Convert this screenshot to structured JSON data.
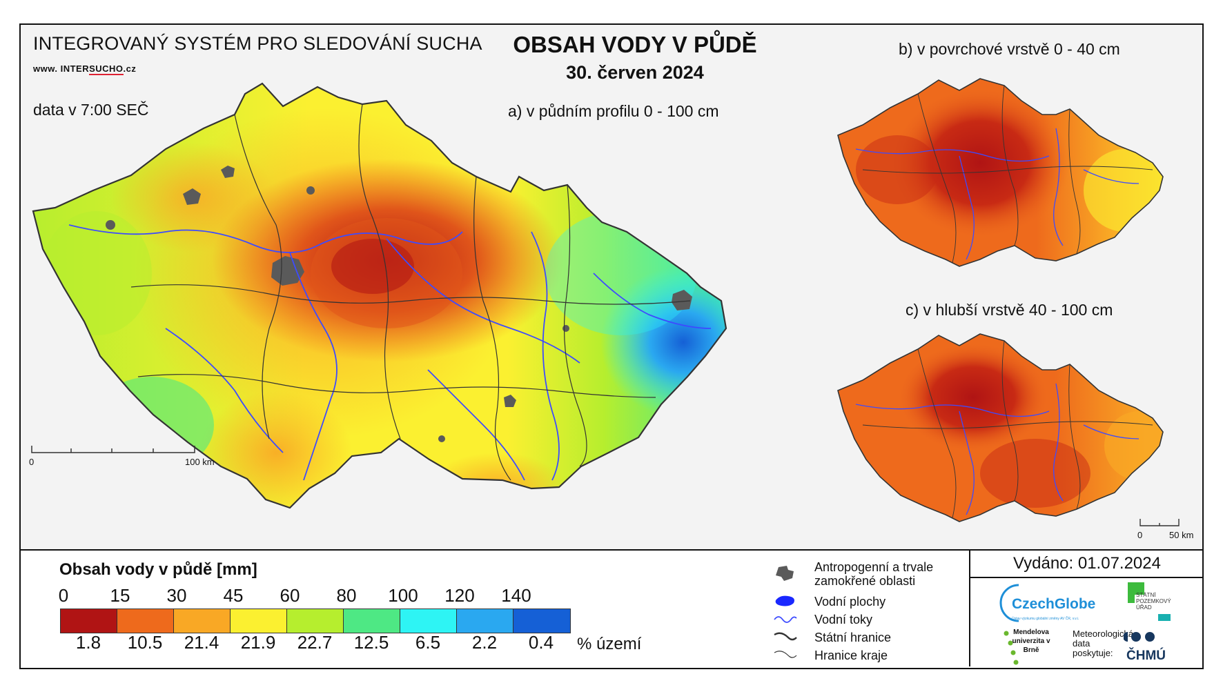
{
  "header": {
    "system_title": "INTEGROVANÝ SYSTÉM PRO SLEDOVÁNÍ SUCHA",
    "web_prefix": "www. INTER",
    "web_highlight": "SUCHO",
    "web_suffix": ".cz",
    "data_time": "data v 7:00 SEČ",
    "main_title": "OBSAH VODY V PŮDĚ",
    "date": "30. červen 2024"
  },
  "maps": {
    "a_label": "a) v půdním profilu 0 - 100 cm",
    "b_label": "b) v povrchové vrstvě 0 - 40 cm",
    "c_label": "c) v hlubší vrstvě 40 - 100 cm"
  },
  "scale_bars": {
    "main_start": "0",
    "main_end": "100 km",
    "small_start": "0",
    "small_end": "50 km"
  },
  "legend": {
    "title": "Obsah vody v půdě  [mm]",
    "ticks": [
      "0",
      "15",
      "30",
      "45",
      "60",
      "80",
      "100",
      "120",
      "140"
    ],
    "colors": [
      "#b01414",
      "#ee6a1c",
      "#f9a825",
      "#fbf030",
      "#b6ee2e",
      "#4ee884",
      "#2ef4f4",
      "#2aa8f0",
      "#1560d6"
    ],
    "percent": [
      "1.8",
      "10.5",
      "21.4",
      "21.9",
      "22.7",
      "12.5",
      "6.5",
      "2.2",
      "0.4"
    ],
    "percent_label": "% území"
  },
  "symbols": {
    "anthropogenic": "Antropogenní a trvale zamokřené oblasti",
    "water_bodies": "Vodní plochy",
    "water_courses": "Vodní toky",
    "state_border": "Státní hranice",
    "region_border": "Hranice kraje"
  },
  "issued": "Vydáno: 01.07.2024",
  "logos": {
    "czechglobe": "CzechGlobe",
    "czechglobe_sub": "Ústav výzkumu globální změny AV ČR, v.v.i.",
    "spu": "STÁTNÍ POZEMKOVÝ ÚŘAD",
    "mendelu": "Mendelova univerzita v Brně",
    "meteo": "Meteorologická data poskytuje:",
    "chmu": "ČHMÚ"
  },
  "colors": {
    "map_background": "#f3f3f3",
    "rivers": "#3d4bff",
    "borders": "#333333",
    "anthropogenic": "#5a5a5a"
  }
}
